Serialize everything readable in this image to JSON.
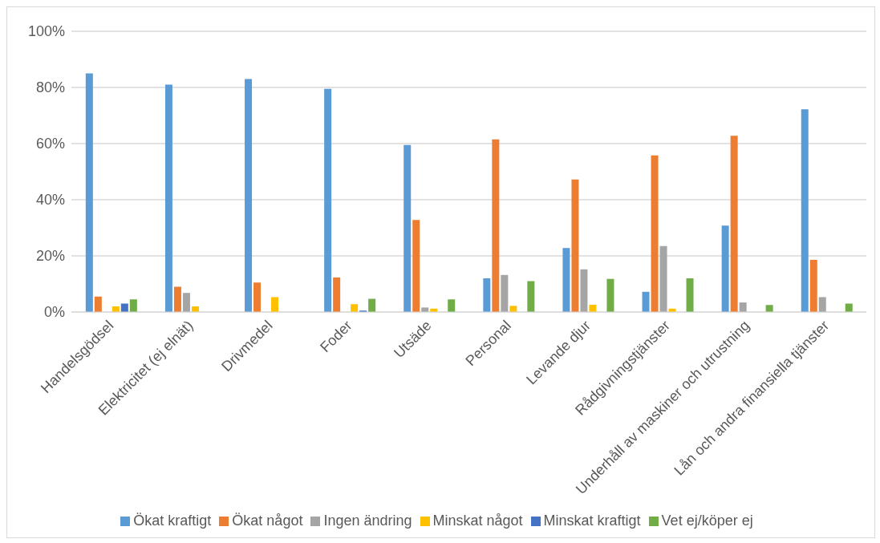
{
  "chart_data": {
    "type": "bar",
    "categories": [
      "Handelsgödsel",
      "Elektricitet (ej elnät)",
      "Drivmedel",
      "Foder",
      "Utsäde",
      "Personal",
      "Levande djur",
      "Rådgivningstjänster",
      "Underhåll av maskiner och utrustning",
      "Lån och andra finansiella tjänster"
    ],
    "series": [
      {
        "name": "Ökat kraftigt",
        "color": "#5b9bd5",
        "values": [
          85,
          81,
          83,
          79.5,
          59.5,
          12,
          22.8,
          7.2,
          30.8,
          72.2
        ]
      },
      {
        "name": "Ökat något",
        "color": "#ed7d31",
        "values": [
          5.5,
          9,
          10.5,
          12.3,
          32.8,
          61.5,
          47.2,
          55.8,
          62.8,
          18.6
        ]
      },
      {
        "name": "Ingen ändring",
        "color": "#a5a5a5",
        "values": [
          0,
          6.8,
          0,
          0,
          1.6,
          13.2,
          15.2,
          23.5,
          3.4,
          5.3
        ]
      },
      {
        "name": "Minskat något",
        "color": "#ffc000",
        "values": [
          2,
          2,
          5.3,
          2.8,
          1.2,
          2.2,
          2.6,
          1.2,
          0,
          null
        ]
      },
      {
        "name": "Minskat kraftigt",
        "color": "#4472c4",
        "values": [
          3,
          null,
          null,
          0.5,
          0,
          0,
          0,
          0,
          0,
          0
        ]
      },
      {
        "name": "Vet ej/köper ej",
        "color": "#70ad47",
        "values": [
          4.5,
          null,
          null,
          4.7,
          4.5,
          11,
          11.8,
          12,
          2.5,
          3
        ]
      }
    ],
    "ylim": [
      0,
      100
    ],
    "yticks": [
      {
        "value": 0,
        "label": "0%"
      },
      {
        "value": 20,
        "label": "20%"
      },
      {
        "value": 40,
        "label": "40%"
      },
      {
        "value": 60,
        "label": "60%"
      },
      {
        "value": 80,
        "label": "80%"
      },
      {
        "value": 100,
        "label": "100%"
      }
    ],
    "grid": "y",
    "legend": "bottom"
  }
}
